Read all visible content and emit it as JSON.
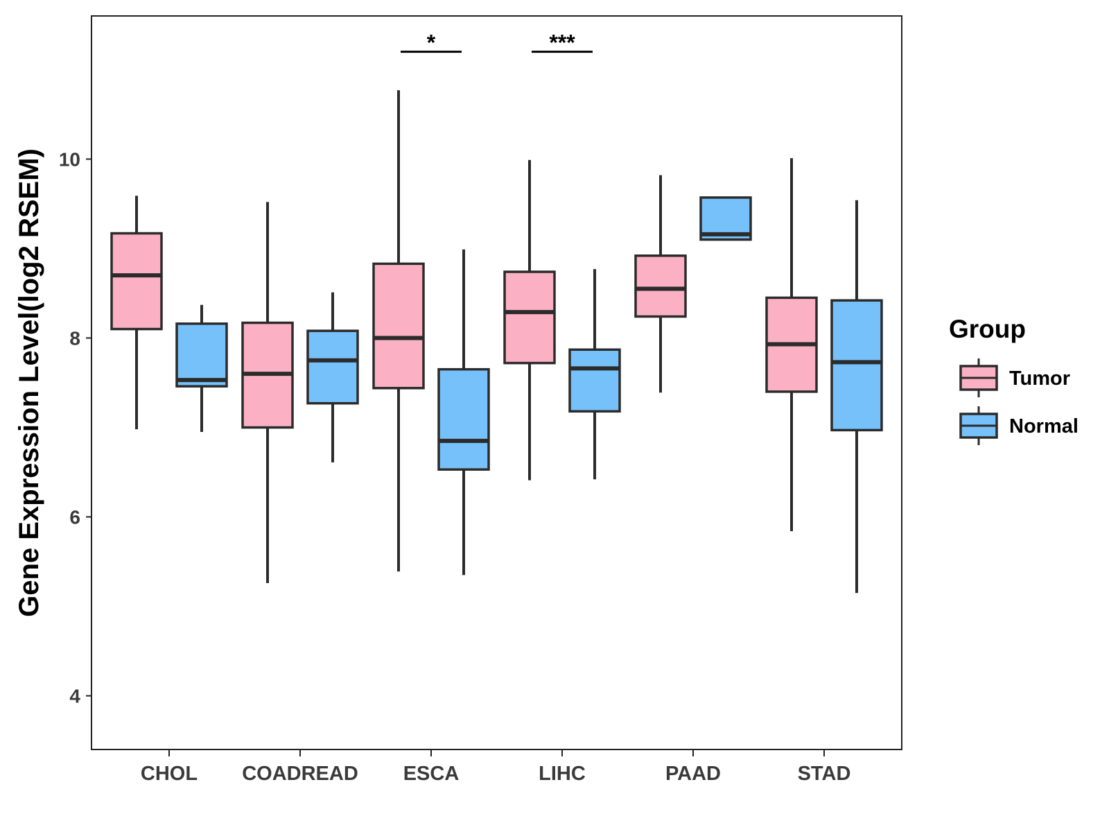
{
  "chart_data": {
    "type": "box",
    "ylabel": "Gene Expression Level(log2 RSEM)",
    "xlabel": "",
    "ylim": [
      3.4,
      11.6
    ],
    "yticks": [
      4,
      6,
      8,
      10
    ],
    "categories": [
      "CHOL",
      "COADREAD",
      "ESCA",
      "LIHC",
      "PAAD",
      "STAD"
    ],
    "series": [
      {
        "name": "Tumor",
        "color": "#fbb1c3",
        "boxes": [
          {
            "min": 6.98,
            "q1": 8.1,
            "median": 8.7,
            "q3": 9.17,
            "max": 9.59
          },
          {
            "min": 5.26,
            "q1": 7.0,
            "median": 7.6,
            "q3": 8.17,
            "max": 9.52
          },
          {
            "min": 5.39,
            "q1": 7.44,
            "median": 8.0,
            "q3": 8.83,
            "max": 10.77
          },
          {
            "min": 6.41,
            "q1": 7.72,
            "median": 8.29,
            "q3": 8.74,
            "max": 9.99
          },
          {
            "min": 7.39,
            "q1": 8.24,
            "median": 8.55,
            "q3": 8.92,
            "max": 9.82
          },
          {
            "min": 5.84,
            "q1": 7.4,
            "median": 7.93,
            "q3": 8.45,
            "max": 10.01
          }
        ]
      },
      {
        "name": "Normal",
        "color": "#77c1fa",
        "boxes": [
          {
            "min": 6.95,
            "q1": 7.46,
            "median": 7.53,
            "q3": 8.16,
            "max": 8.37
          },
          {
            "min": 6.61,
            "q1": 7.27,
            "median": 7.75,
            "q3": 8.08,
            "max": 8.51
          },
          {
            "min": 5.35,
            "q1": 6.53,
            "median": 6.85,
            "q3": 7.65,
            "max": 8.99
          },
          {
            "min": 6.42,
            "q1": 7.18,
            "median": 7.66,
            "q3": 7.87,
            "max": 8.77
          },
          {
            "min": 9.1,
            "q1": 9.1,
            "median": 9.16,
            "q3": 9.57,
            "max": 9.57
          },
          {
            "min": 5.15,
            "q1": 6.97,
            "median": 7.73,
            "q3": 8.42,
            "max": 9.54
          }
        ]
      }
    ],
    "annotations": [
      {
        "category": "ESCA",
        "label": "*",
        "y": 11.2
      },
      {
        "category": "LIHC",
        "label": "***",
        "y": 11.2
      }
    ],
    "legend": {
      "title": "Group",
      "position": "right"
    },
    "grid": false
  }
}
